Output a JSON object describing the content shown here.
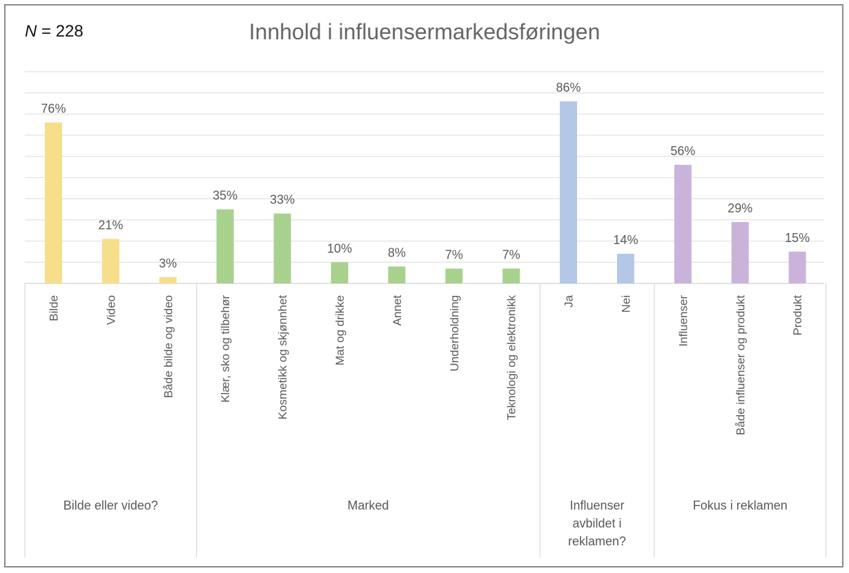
{
  "header": {
    "n_label": "N",
    "n_value": "= 228"
  },
  "chart_data": {
    "type": "bar",
    "title": "Innhold i influensermarkedsføringen",
    "xlabel": "",
    "ylabel": "",
    "ylim": [
      0,
      100
    ],
    "grid": true,
    "legend": "none",
    "groups": [
      {
        "name": "Bilde eller video?",
        "color": "#f6de8b",
        "categories": [
          "Bilde",
          "Video",
          "Både bilde og video"
        ],
        "values": [
          76,
          21,
          3
        ],
        "labels": [
          "76%",
          "21%",
          "3%"
        ]
      },
      {
        "name": "Marked",
        "color": "#a9d18e",
        "categories": [
          "Klær, sko og tilbehør",
          "Kosmetikk og skjønnhet",
          "Mat og drikke",
          "Annet",
          "Underholdning",
          "Teknologi og elektronikk"
        ],
        "values": [
          35,
          33,
          10,
          8,
          7,
          7
        ],
        "labels": [
          "35%",
          "33%",
          "10%",
          "8%",
          "7%",
          "7%"
        ]
      },
      {
        "name": "Influenser avbildet i reklamen?",
        "name_lines": [
          "Influenser",
          "avbildet i",
          "reklamen?"
        ],
        "color": "#b4c7e7",
        "categories": [
          "Ja",
          "Nei"
        ],
        "values": [
          86,
          14
        ],
        "labels": [
          "86%",
          "14%"
        ]
      },
      {
        "name": "Fokus i reklamen",
        "color": "#c9b3db",
        "categories": [
          "Influenser",
          "Både influenser og produkt",
          "Produkt"
        ],
        "values": [
          56,
          29,
          15
        ],
        "labels": [
          "56%",
          "29%",
          "15%"
        ]
      }
    ]
  }
}
